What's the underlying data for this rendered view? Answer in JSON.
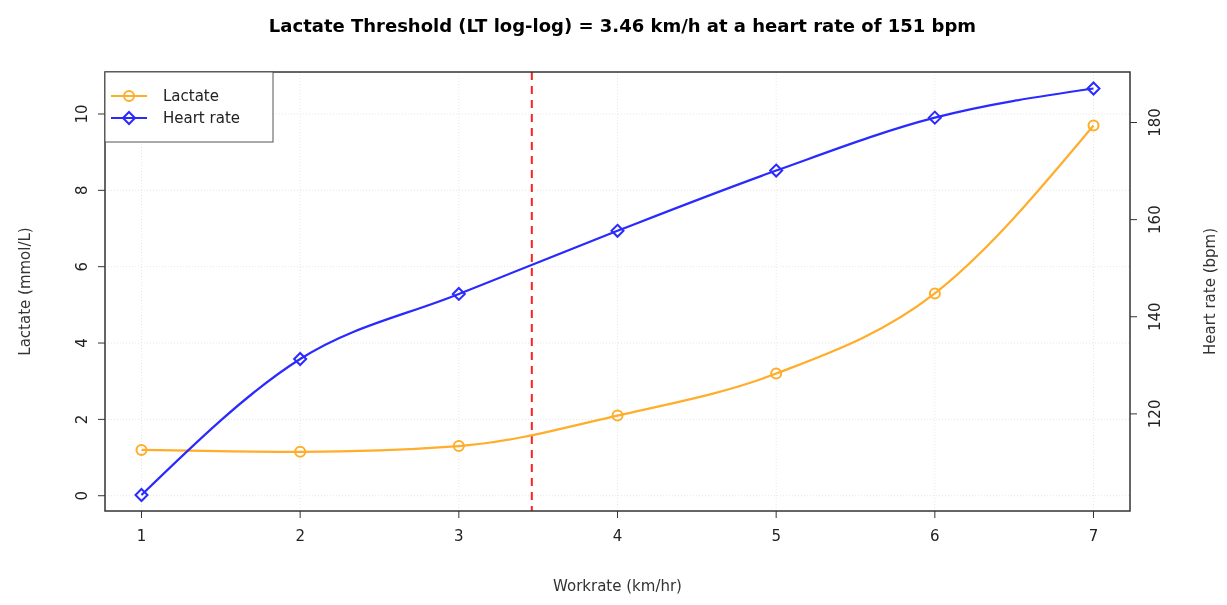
{
  "chart_data": {
    "type": "line",
    "title": "Lactate Threshold (LT log-log) = 3.46 km/h at a heart rate of 151 bpm",
    "xlabel": "Workrate (km/hr)",
    "ylabel": "Lactate (mmol/L)",
    "y2label": "Heart rate (bpm)",
    "x": [
      1,
      2,
      3,
      4,
      5,
      6,
      7
    ],
    "series": [
      {
        "name": "Lactate",
        "color": "#ffad2a",
        "marker": "circle",
        "values": [
          1.2,
          1.15,
          1.3,
          2.1,
          3.2,
          5.3,
          9.7
        ]
      },
      {
        "name": "Heart rate",
        "color": "#2a2aff",
        "marker": "diamond",
        "axis": "y2",
        "values": [
          103.3,
          131.3,
          144.7,
          157.7,
          170.1,
          181,
          187
        ]
      }
    ],
    "xlim": [
      0.77,
      7.23
    ],
    "xticks": [
      1,
      2,
      3,
      4,
      5,
      6,
      7
    ],
    "ylim": [
      -0.4,
      11.1
    ],
    "yticks": [
      0,
      2,
      4,
      6,
      8,
      10
    ],
    "y2lim": [
      100,
      190.4
    ],
    "y2ticks": [
      120,
      140,
      160,
      180
    ],
    "ref_lines": [
      {
        "axis": "x",
        "value": 3.46,
        "color": "#ff2020",
        "line_style": "dashed"
      }
    ],
    "grid": true,
    "legend": "top left",
    "line_style": "solid"
  }
}
